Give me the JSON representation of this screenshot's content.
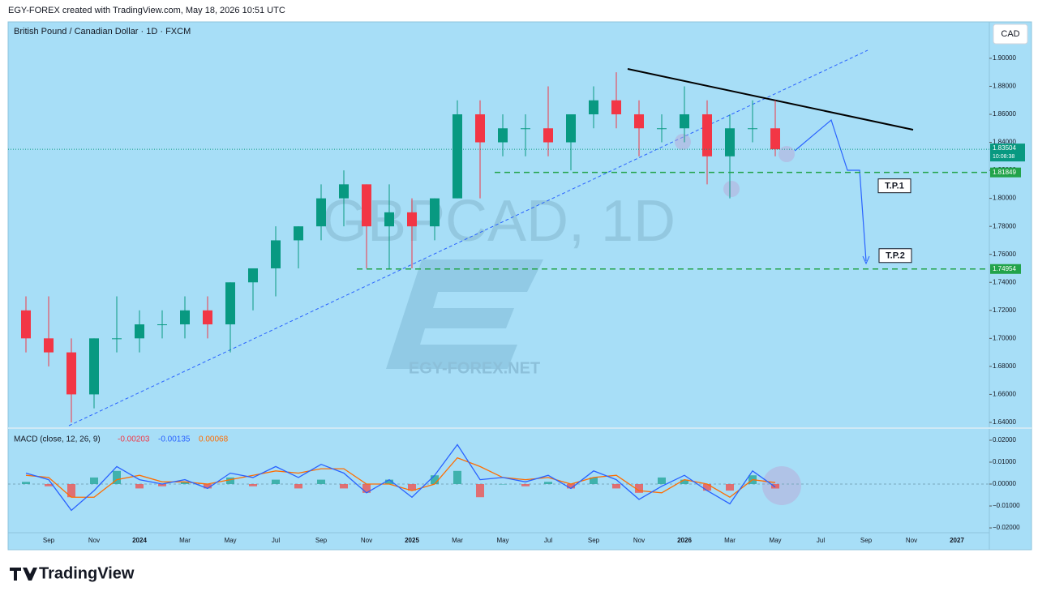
{
  "header": "EGY-FOREX created with TradingView.com, May 18, 2026 10:51 UTC",
  "footer": "TradingView",
  "chart_data": [
    {
      "type": "candlestick",
      "title": "British Pound / Canadian Dollar · 1D · FXCM",
      "currency": "CAD",
      "watermark": "GBPCAD, 1D",
      "brand": "EGY-FOREX.NET",
      "up_color": "#089981",
      "down_color": "#f23645",
      "categories": [
        null,
        "Sep",
        null,
        "Nov",
        null,
        "2024",
        null,
        "Mar",
        null,
        "May",
        null,
        "Jul",
        null,
        "Sep",
        null,
        "Nov",
        null,
        "2025",
        null,
        "Mar",
        null,
        "May",
        null,
        "Jul",
        null,
        "Sep",
        null,
        "Nov",
        null,
        "2026",
        null,
        "Mar",
        null,
        "May",
        null,
        "Jul",
        null,
        "Sep",
        null,
        "Nov",
        null,
        "2027"
      ],
      "open": [
        1.72,
        1.7,
        1.69,
        1.66,
        1.7,
        1.7,
        1.71,
        1.71,
        1.72,
        1.71,
        1.74,
        1.75,
        1.77,
        1.78,
        1.8,
        1.81,
        1.78,
        1.79,
        1.78,
        1.8,
        1.86,
        1.84,
        1.85,
        1.85,
        1.84,
        1.86,
        1.87,
        1.86,
        1.85,
        1.85,
        1.86,
        1.83,
        1.85,
        1.85,
        null,
        null,
        null,
        null,
        null,
        null,
        null,
        null
      ],
      "high": [
        1.73,
        1.73,
        1.7,
        1.7,
        1.73,
        1.72,
        1.72,
        1.73,
        1.73,
        1.74,
        1.75,
        1.78,
        1.78,
        1.81,
        1.82,
        1.81,
        1.81,
        1.8,
        1.8,
        1.87,
        1.87,
        1.86,
        1.86,
        1.88,
        1.86,
        1.88,
        1.89,
        1.87,
        1.86,
        1.88,
        1.87,
        1.86,
        1.87,
        1.87,
        null,
        null,
        null,
        null,
        null,
        null,
        null,
        null
      ],
      "low": [
        1.69,
        1.68,
        1.64,
        1.65,
        1.69,
        1.69,
        1.7,
        1.7,
        1.7,
        1.69,
        1.72,
        1.73,
        1.75,
        1.77,
        1.78,
        1.75,
        1.75,
        1.75,
        1.77,
        1.8,
        1.8,
        1.83,
        1.83,
        1.83,
        1.82,
        1.85,
        1.85,
        1.83,
        1.84,
        1.84,
        1.81,
        1.8,
        1.84,
        1.83,
        null,
        null,
        null,
        null,
        null,
        null,
        null,
        null
      ],
      "close": [
        1.7,
        1.69,
        1.66,
        1.7,
        1.7,
        1.71,
        1.71,
        1.72,
        1.71,
        1.74,
        1.75,
        1.77,
        1.78,
        1.8,
        1.81,
        1.78,
        1.79,
        1.78,
        1.8,
        1.86,
        1.84,
        1.85,
        1.85,
        1.84,
        1.86,
        1.87,
        1.86,
        1.85,
        1.85,
        1.86,
        1.83,
        1.85,
        1.85,
        1.835,
        null,
        null,
        null,
        null,
        null,
        null,
        null,
        null
      ],
      "ylim": [
        1.6365,
        1.926
      ],
      "yticks": [
        {
          "value": 1.64,
          "label": "1.64000"
        },
        {
          "value": 1.66,
          "label": "1.66000"
        },
        {
          "value": 1.68,
          "label": "1.68000"
        },
        {
          "value": 1.7,
          "label": "1.70000"
        },
        {
          "value": 1.72,
          "label": "1.72000"
        },
        {
          "value": 1.74,
          "label": "1.74000"
        },
        {
          "value": 1.76,
          "label": "1.76000"
        },
        {
          "value": 1.78,
          "label": "1.78000"
        },
        {
          "value": 1.8,
          "label": "1.80000"
        },
        {
          "value": 1.82,
          "label": "1.82000"
        },
        {
          "value": 1.84,
          "label": "1.84000"
        },
        {
          "value": 1.86,
          "label": "1.86000"
        },
        {
          "value": 1.88,
          "label": "1.88000"
        },
        {
          "value": 1.9,
          "label": "1.90000"
        }
      ],
      "last_price": {
        "value": 1.83504,
        "countdown": "10:08:38",
        "color": "#089981"
      },
      "price_lines": [
        {
          "value": 1.81849,
          "target": "T.P.1",
          "color": "#22a34a"
        },
        {
          "value": 1.74954,
          "target": "T.P.2",
          "color": "#22a34a"
        }
      ]
    },
    {
      "type": "macd",
      "title": "MACD (close, 12, 26, 9)",
      "histogram": {
        "up_color": "#26a69a",
        "down_color": "#ef5350",
        "readout_color": "#f23645",
        "values": [
          0.001,
          -0.001,
          -0.006,
          0.003,
          0.006,
          -0.002,
          -0.001,
          0.001,
          -0.002,
          0.003,
          -0.001,
          0.002,
          -0.002,
          0.002,
          -0.002,
          -0.004,
          0.002,
          -0.003,
          0.004,
          0.006,
          -0.006,
          0.0,
          -0.001,
          0.001,
          -0.002,
          0.003,
          -0.002,
          -0.004,
          0.003,
          0.002,
          -0.003,
          -0.003,
          0.004,
          -0.00203
        ]
      },
      "macd": {
        "color": "#2962ff",
        "values": [
          0.005,
          0.002,
          -0.012,
          -0.003,
          0.008,
          0.002,
          0.0,
          0.002,
          -0.002,
          0.005,
          0.003,
          0.008,
          0.003,
          0.009,
          0.005,
          -0.004,
          0.002,
          -0.006,
          0.004,
          0.018,
          0.002,
          0.003,
          0.001,
          0.004,
          -0.002,
          0.006,
          0.002,
          -0.007,
          -0.001,
          0.004,
          -0.003,
          -0.009,
          0.006,
          -0.00135
        ]
      },
      "signal": {
        "color": "#ff6d00",
        "values": [
          0.004,
          0.003,
          -0.006,
          -0.006,
          0.002,
          0.004,
          0.001,
          0.001,
          0.0,
          0.002,
          0.004,
          0.006,
          0.005,
          0.007,
          0.007,
          0.0,
          0.0,
          -0.003,
          0.0,
          0.012,
          0.008,
          0.003,
          0.002,
          0.003,
          0.0,
          0.003,
          0.004,
          -0.003,
          -0.004,
          0.002,
          0.0,
          -0.006,
          0.002,
          0.00068
        ]
      },
      "ylim": [
        -0.0222,
        0.0248
      ],
      "yticks": [
        {
          "value": -0.02,
          "label": "−0.02000"
        },
        {
          "value": -0.01,
          "label": "−0.01000"
        },
        {
          "value": 0,
          "label": "0.00000"
        },
        {
          "value": 0.01,
          "label": "0.01000"
        },
        {
          "value": 0.02,
          "label": "0.02000"
        }
      ]
    }
  ]
}
